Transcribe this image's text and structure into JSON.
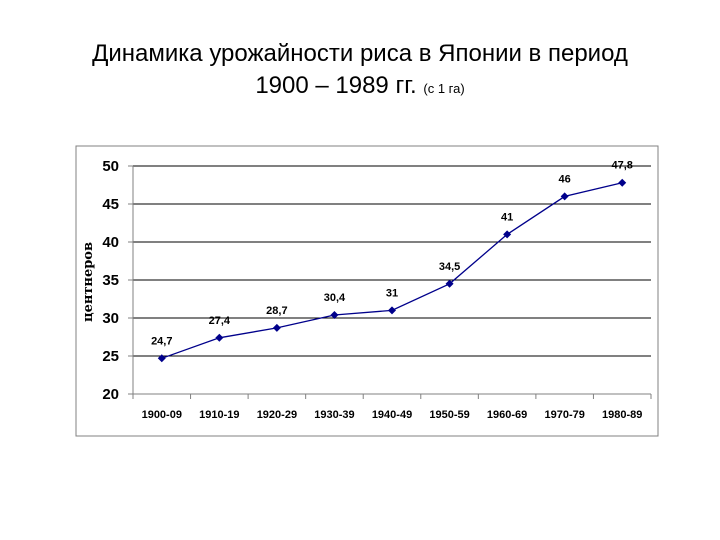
{
  "title": {
    "line1": "Динамика урожайности риса в Японии в период",
    "line2": "1900 – 1989 гг.",
    "note": "(с 1 га)"
  },
  "chart_data": {
    "type": "line",
    "title": "",
    "xlabel": "",
    "ylabel": "центнеров",
    "ylim": [
      20,
      50
    ],
    "y_ticks": [
      20,
      25,
      30,
      35,
      40,
      45,
      50
    ],
    "grid": true,
    "legend": "none",
    "categories": [
      "1900-09",
      "1910-19",
      "1920-29",
      "1930-39",
      "1940-49",
      "1950-59",
      "1960-69",
      "1970-79",
      "1980-89"
    ],
    "series": [
      {
        "values": [
          24.7,
          27.4,
          28.7,
          30.4,
          31,
          34.5,
          41,
          46,
          47.8
        ],
        "labels": [
          "24,7",
          "27,4",
          "28,7",
          "30,4",
          "31",
          "34,5",
          "41",
          "46",
          "47,8"
        ],
        "color": "#00008b"
      }
    ],
    "plot_border_color": "#808080",
    "grid_color": "#000000"
  }
}
